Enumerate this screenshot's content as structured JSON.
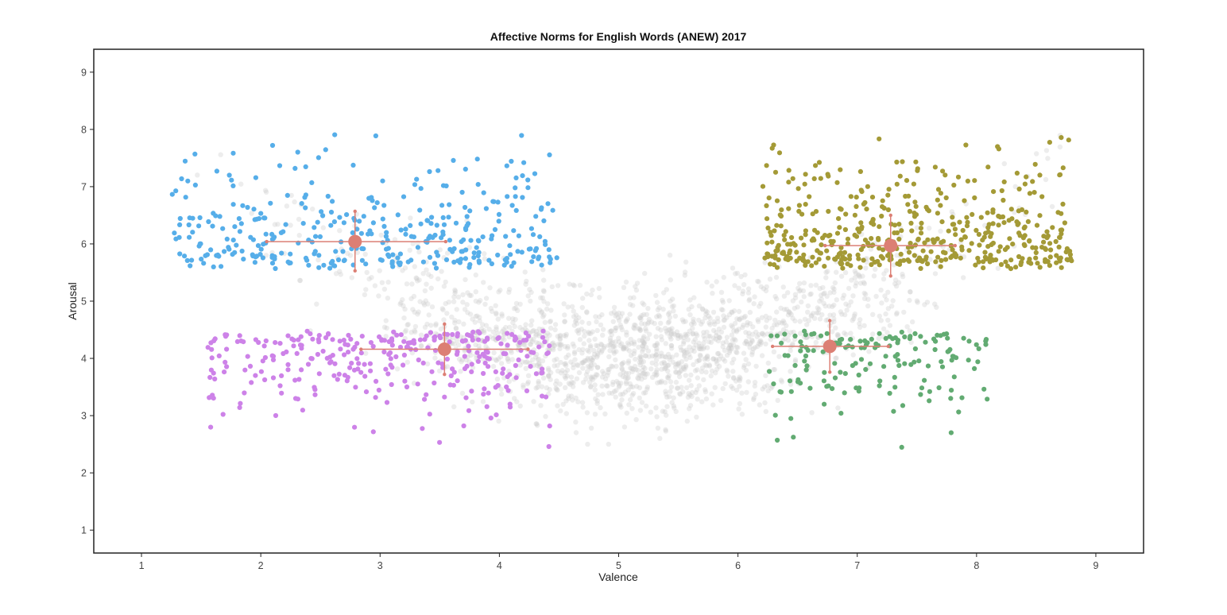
{
  "chart_data": {
    "type": "scatter",
    "title": "Affective Norms for English Words (ANEW) 2017",
    "xlabel": "Valence",
    "ylabel": "Arousal",
    "xlim": [
      0.6,
      9.4
    ],
    "ylim": [
      0.6,
      9.4
    ],
    "xticks": [
      "1",
      "2",
      "3",
      "4",
      "5",
      "6",
      "7",
      "8",
      "9"
    ],
    "yticks": [
      "1",
      "2",
      "3",
      "4",
      "5",
      "6",
      "7",
      "8",
      "9"
    ],
    "grid": false,
    "legend": "none",
    "background_points": {
      "color": "#cccccc",
      "approx_count": 1700,
      "valence_range": [
        1.4,
        8.7
      ],
      "arousal_range": [
        2.5,
        7.9
      ]
    },
    "series": [
      {
        "color": "#56aee9",
        "approx_count": 360,
        "valence_range": [
          1.25,
          4.5
        ],
        "arousal_range": [
          5.5,
          8.2
        ],
        "center": [
          2.79,
          6.04
        ],
        "error_x": [
          2.05,
          3.55
        ],
        "error_y": [
          5.53,
          6.57
        ]
      },
      {
        "color": "#cd82e8",
        "approx_count": 310,
        "valence_range": [
          1.55,
          4.45
        ],
        "arousal_range": [
          2.3,
          4.55
        ],
        "center": [
          3.54,
          4.16
        ],
        "error_x": [
          2.84,
          4.24
        ],
        "error_y": [
          3.72,
          4.6
        ]
      },
      {
        "color": "#a49a36",
        "approx_count": 480,
        "valence_range": [
          6.2,
          8.8
        ],
        "arousal_range": [
          5.5,
          8.1
        ],
        "center": [
          7.28,
          5.97
        ],
        "error_x": [
          6.73,
          7.82
        ],
        "error_y": [
          5.44,
          6.5
        ]
      },
      {
        "color": "#62ab72",
        "approx_count": 160,
        "valence_range": [
          6.25,
          8.1
        ],
        "arousal_range": [
          2.4,
          4.55
        ],
        "center": [
          6.77,
          4.21
        ],
        "error_x": [
          6.29,
          7.26
        ],
        "error_y": [
          3.76,
          4.66
        ]
      }
    ],
    "summary_marker_color": "#dc7f74"
  }
}
